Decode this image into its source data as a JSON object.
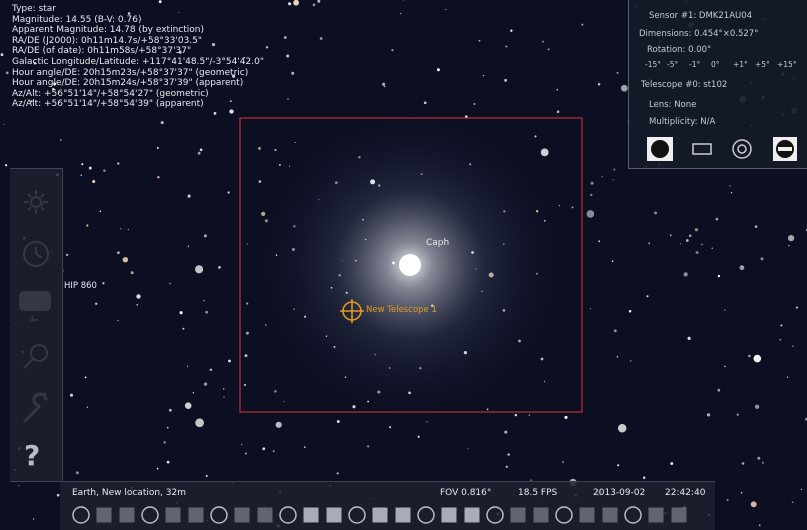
{
  "object_info": {
    "lines": [
      "Type: star",
      "Magnitude: 14.55 (B-V: 0.76)",
      "Apparent Magnitude: 14.78 (by extinction)",
      "RA/DE (J2000): 0h11m14.7s/+58°33'03.5\"",
      "RA/DE (of date): 0h11m58s/+58°37'37\"",
      "Galactic Longitude/Latitude: +117°41'48.5\"/-3°54'42.0\"",
      "Hour angle/DE: 20h15m23s/+58°37'37\" (geometric)",
      "Hour angle/DE: 20h15m24s/+58°37'39\" (apparent)",
      "Az/Alt: +56°51'14\"/+58°54'27\" (geometric)",
      "Az/Alt: +56°51'14\"/+58°54'39\" (apparent)"
    ]
  },
  "oculars_panel": {
    "sensor": "Sensor #1: DMK21AU04",
    "dimensions": "Dimensions: 0.454°×0.527°",
    "rotation": "Rotation: 0.00°",
    "rotation_buttons": [
      "-15°",
      "-5°",
      "-1°",
      "0°",
      "+1°",
      "+5°",
      "+15°"
    ],
    "telescope": "Telescope #0: st102",
    "lens": "Lens: None",
    "multiplicity": "Multiplicity: N/A"
  },
  "sky_labels": {
    "star": "Caph",
    "telescope": "New Telescope 1",
    "hip": "HIP 860"
  },
  "sidebar": {
    "help": "?"
  },
  "status_bar": {
    "location": "Earth, New location, 32m",
    "fov": "FOV 0.816°",
    "fps": "18.5 FPS",
    "date": "2013-09-02",
    "time": "22:42:40"
  }
}
